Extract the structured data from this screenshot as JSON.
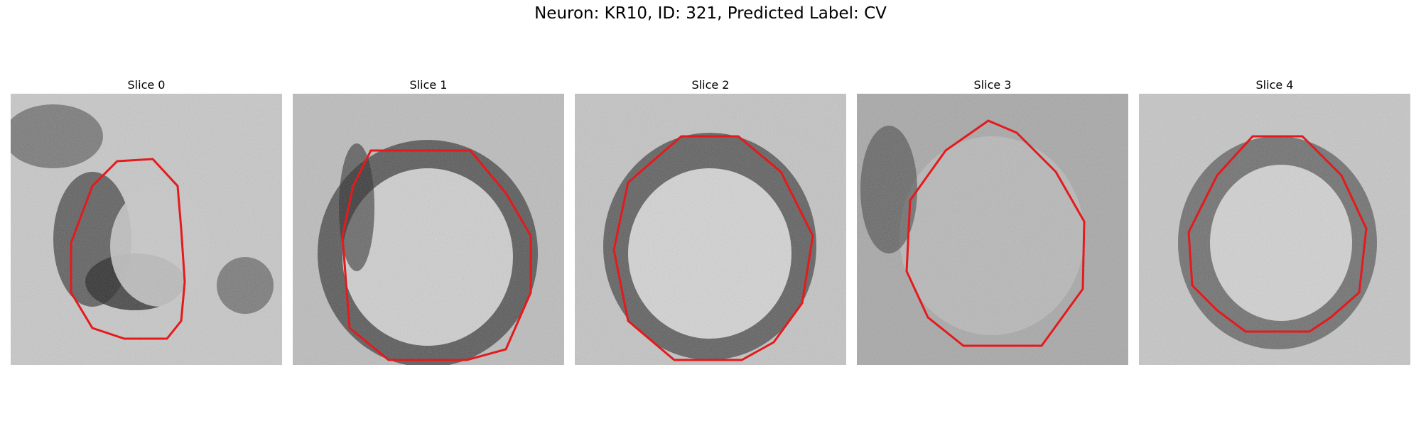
{
  "figure": {
    "title": "Neuron: KR10, ID: 321, Predicted Label: CV"
  },
  "panels": [
    {
      "title": "Slice 0"
    },
    {
      "title": "Slice 1"
    },
    {
      "title": "Slice 2"
    },
    {
      "title": "Slice 3"
    },
    {
      "title": "Slice 4"
    }
  ],
  "colors": {
    "contour": "#e41a1c",
    "colormap": "gray"
  }
}
